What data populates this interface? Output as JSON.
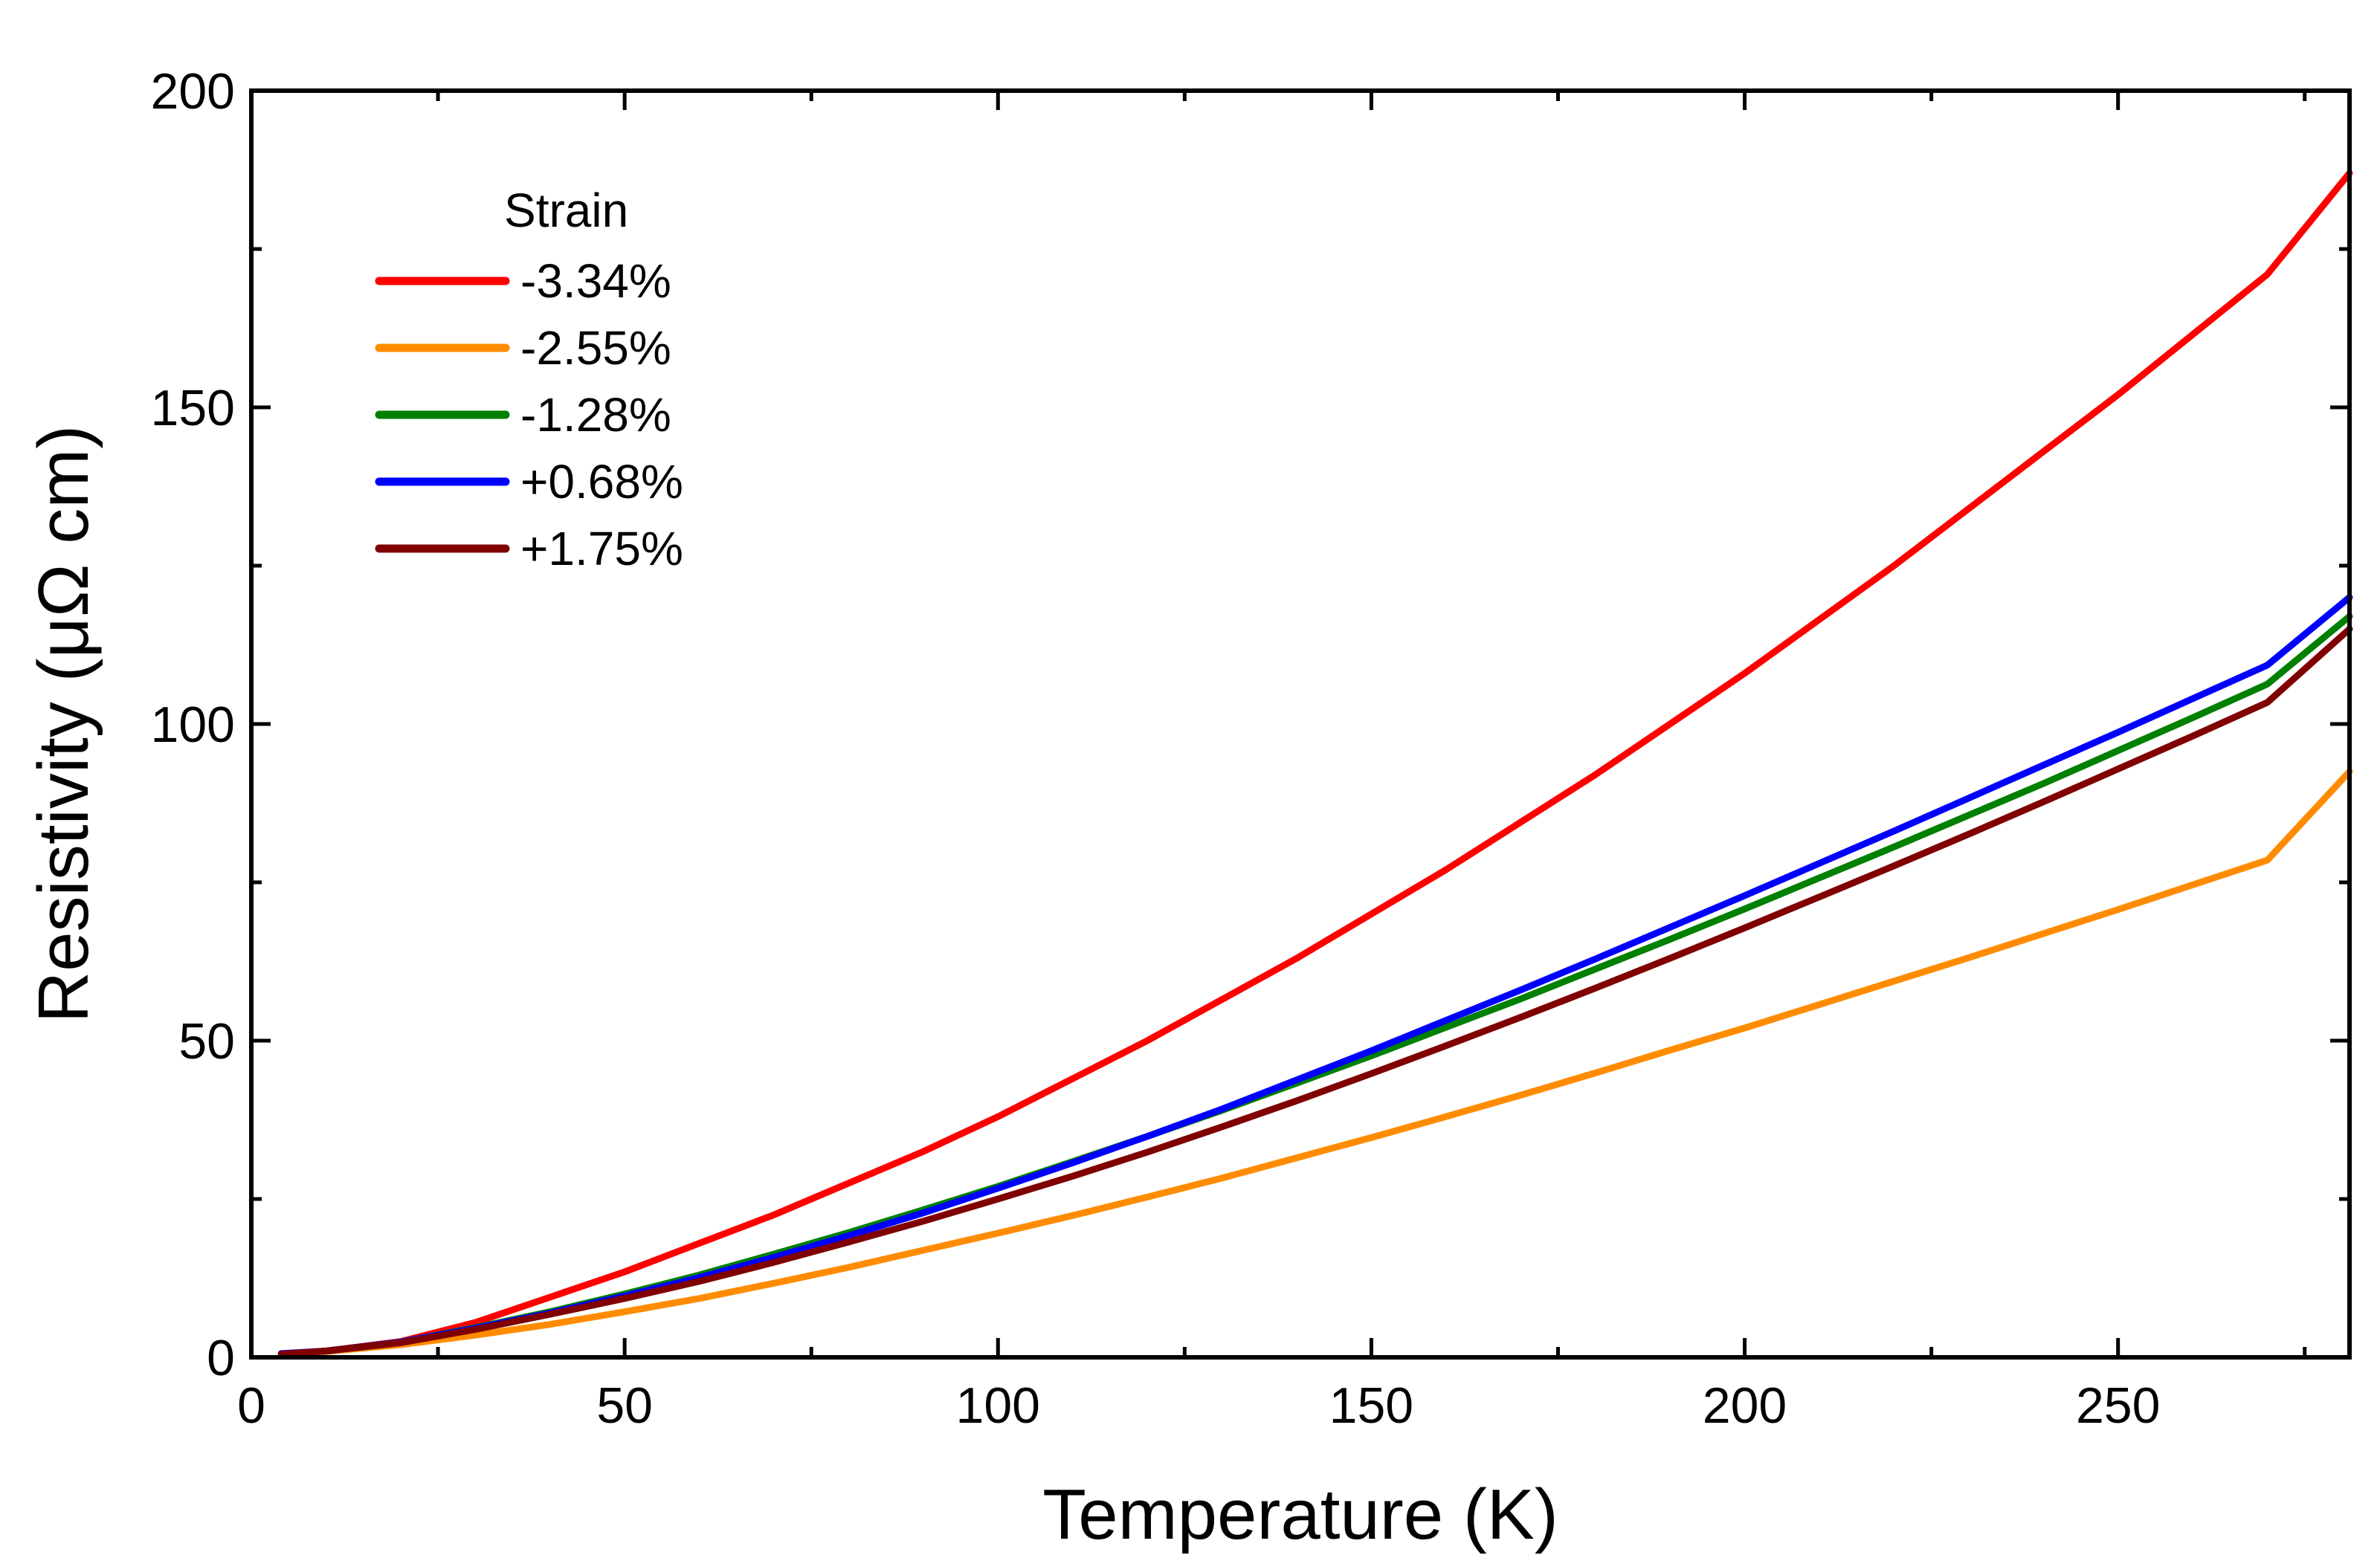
{
  "chart_data": {
    "type": "line",
    "title": "",
    "xlabel": "Temperature (K)",
    "ylabel": "Resistivity (μΩ cm)",
    "xlim": [
      0,
      281
    ],
    "ylim": [
      0,
      200
    ],
    "x_ticks": [
      0,
      50,
      100,
      150,
      200,
      250
    ],
    "y_ticks": [
      0,
      50,
      100,
      150,
      200
    ],
    "x_tick_labels": [
      "0",
      "50",
      "100",
      "150",
      "200",
      "250"
    ],
    "y_tick_labels": [
      "0",
      "50",
      "100",
      "150",
      "200"
    ],
    "grid": false,
    "legend": {
      "title": "Strain",
      "position": "top-left"
    },
    "series": [
      {
        "name": "-3.34%",
        "color": "#ff0000",
        "x": [
          4,
          10,
          20,
          30,
          40,
          50,
          60,
          70,
          80,
          90,
          100,
          110,
          120,
          130,
          140,
          150,
          160,
          170,
          180,
          190,
          200,
          210,
          220,
          230,
          240,
          250,
          260,
          270,
          281
        ],
        "y": [
          0.5,
          1.0,
          2.5,
          5.5,
          9.5,
          13.5,
          18,
          22.5,
          27.5,
          32.5,
          38,
          44,
          50,
          56.5,
          63,
          70,
          77,
          84.5,
          92,
          100,
          108,
          116.5,
          125,
          134,
          143,
          152,
          161.5,
          171,
          187
        ]
      },
      {
        "name": "-2.55%",
        "color": "#ff8c00",
        "x": [
          4,
          10,
          20,
          30,
          40,
          50,
          60,
          70,
          80,
          90,
          100,
          110,
          120,
          130,
          140,
          150,
          160,
          170,
          180,
          190,
          200,
          210,
          220,
          230,
          240,
          250,
          260,
          270,
          281
        ],
        "y": [
          0.5,
          0.9,
          2.0,
          3.5,
          5.2,
          7.2,
          9.3,
          11.7,
          14.2,
          16.9,
          19.6,
          22.4,
          25.3,
          28.3,
          31.5,
          34.7,
          38,
          41.4,
          44.9,
          48.5,
          52,
          55.7,
          59.4,
          63.1,
          66.9,
          70.7,
          74.6,
          78.5,
          92.5
        ]
      },
      {
        "name": "-1.28%",
        "color": "#008000",
        "x": [
          4,
          10,
          20,
          30,
          40,
          50,
          60,
          70,
          80,
          90,
          100,
          110,
          120,
          130,
          140,
          150,
          160,
          170,
          180,
          190,
          200,
          210,
          220,
          230,
          240,
          250,
          260,
          270,
          281
        ],
        "y": [
          0.5,
          1.0,
          2.4,
          4.7,
          7.2,
          10.0,
          13.0,
          16.3,
          19.7,
          23.3,
          27.0,
          30.9,
          34.9,
          39.0,
          43.3,
          47.6,
          52.1,
          56.6,
          61.3,
          66.0,
          70.8,
          75.7,
          80.6,
          85.6,
          90.6,
          95.8,
          101,
          106.3,
          117
        ]
      },
      {
        "name": "+0.68%",
        "color": "#0000ff",
        "x": [
          4,
          10,
          20,
          30,
          40,
          50,
          60,
          70,
          80,
          90,
          100,
          110,
          120,
          130,
          140,
          150,
          160,
          170,
          180,
          190,
          200,
          210,
          220,
          230,
          240,
          250,
          260,
          270,
          281
        ],
        "y": [
          0.6,
          1.0,
          2.4,
          4.6,
          7.0,
          9.7,
          12.6,
          15.8,
          19.2,
          22.8,
          26.7,
          30.7,
          34.9,
          39.2,
          43.8,
          48.4,
          53.2,
          58.0,
          62.9,
          67.9,
          72.9,
          78.0,
          83.1,
          88.3,
          93.5,
          98.7,
          104,
          109.3,
          120
        ]
      },
      {
        "name": "+1.75%",
        "color": "#800000",
        "x": [
          4,
          10,
          20,
          30,
          40,
          50,
          60,
          70,
          80,
          90,
          100,
          110,
          120,
          130,
          140,
          150,
          160,
          170,
          180,
          190,
          200,
          210,
          220,
          230,
          240,
          250,
          260,
          270,
          281
        ],
        "y": [
          0.5,
          1.0,
          2.3,
          4.4,
          6.8,
          9.3,
          12.0,
          15.0,
          18.2,
          21.5,
          25.0,
          28.6,
          32.4,
          36.4,
          40.5,
          44.8,
          49.2,
          53.7,
          58.3,
          63.0,
          67.8,
          72.7,
          77.6,
          82.6,
          87.7,
          92.9,
          98.1,
          103.4,
          115
        ]
      }
    ]
  }
}
